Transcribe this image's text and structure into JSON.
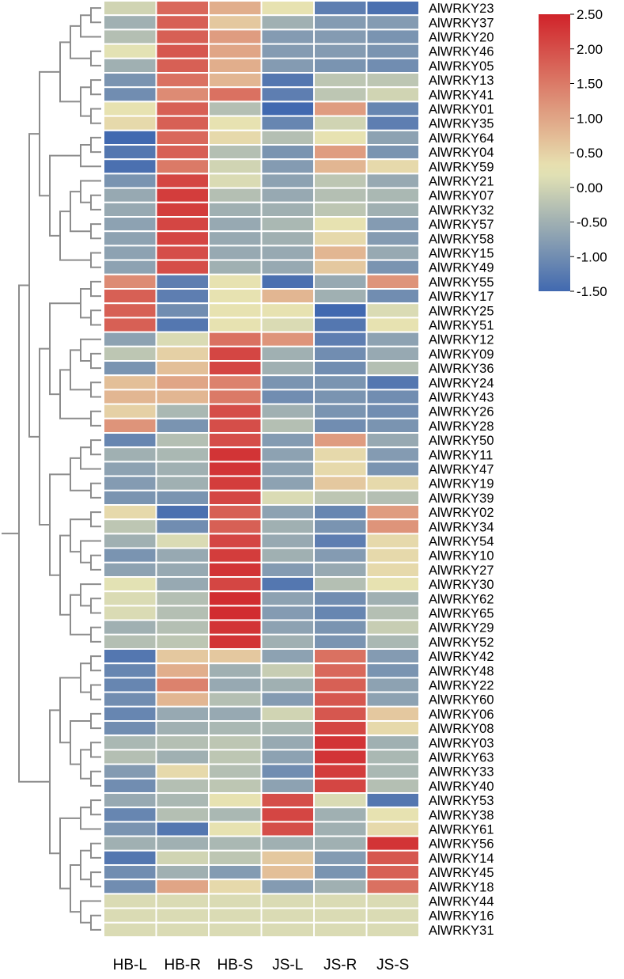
{
  "chart_data": {
    "type": "heatmap",
    "title": "",
    "columns": [
      "HB-L",
      "HB-R",
      "HB-S",
      "JS-L",
      "JS-R",
      "JS-S"
    ],
    "rows": [
      "AlWRKY23",
      "AlWRKY37",
      "AlWRKY20",
      "AlWRKY46",
      "AlWRKY05",
      "AlWRKY13",
      "AlWRKY41",
      "AlWRKY01",
      "AlWRKY35",
      "AlWRKY64",
      "AlWRKY04",
      "AlWRKY59",
      "AlWRKY21",
      "AlWRKY07",
      "AlWRKY32",
      "AlWRKY57",
      "AlWRKY58",
      "AlWRKY15",
      "AlWRKY49",
      "AlWRKY55",
      "AlWRKY17",
      "AlWRKY25",
      "AlWRKY51",
      "AlWRKY12",
      "AlWRKY09",
      "AlWRKY36",
      "AlWRKY24",
      "AlWRKY43",
      "AlWRKY26",
      "AlWRKY28",
      "AlWRKY50",
      "AlWRKY11",
      "AlWRKY47",
      "AlWRKY19",
      "AlWRKY39",
      "AlWRKY02",
      "AlWRKY34",
      "AlWRKY54",
      "AlWRKY10",
      "AlWRKY27",
      "AlWRKY30",
      "AlWRKY62",
      "AlWRKY65",
      "AlWRKY29",
      "AlWRKY52",
      "AlWRKY42",
      "AlWRKY48",
      "AlWRKY22",
      "AlWRKY60",
      "AlWRKY06",
      "AlWRKY08",
      "AlWRKY03",
      "AlWRKY63",
      "AlWRKY33",
      "AlWRKY40",
      "AlWRKY53",
      "AlWRKY38",
      "AlWRKY61",
      "AlWRKY56",
      "AlWRKY14",
      "AlWRKY45",
      "AlWRKY18",
      "AlWRKY44",
      "AlWRKY16",
      "AlWRKY31"
    ],
    "values": [
      [
        0,
        1.7,
        0.9,
        0.3,
        -1.2,
        -1.4
      ],
      [
        -0.5,
        1.8,
        0.6,
        -0.5,
        -0.8,
        -0.8
      ],
      [
        -0.3,
        1.8,
        1.1,
        -0.8,
        -0.8,
        -0.9
      ],
      [
        0.2,
        1.9,
        1.0,
        -0.8,
        -0.8,
        -0.9
      ],
      [
        -0.5,
        1.8,
        0.9,
        -0.8,
        -0.9,
        -1.0
      ],
      [
        -0.9,
        1.6,
        0.8,
        -1.3,
        -0.2,
        -0.2
      ],
      [
        -1.0,
        1.3,
        1.6,
        -1.2,
        -0.2,
        0
      ],
      [
        0.3,
        1.8,
        -0.3,
        -1.5,
        1.1,
        -1.1
      ],
      [
        0.4,
        1.8,
        0.3,
        -1.1,
        0,
        -1.2
      ],
      [
        -1.5,
        1.7,
        0.4,
        -0.3,
        0.3,
        -0.7
      ],
      [
        -1.3,
        1.8,
        -0.3,
        -0.9,
        1.1,
        -0.9
      ],
      [
        -1.4,
        1.5,
        0,
        -0.8,
        0.8,
        0.4
      ],
      [
        -0.9,
        2.1,
        0.1,
        -0.7,
        -0.2,
        -0.6
      ],
      [
        -0.6,
        2.2,
        -0.3,
        -0.6,
        -0.3,
        -0.4
      ],
      [
        -0.6,
        2.2,
        -0.5,
        -0.5,
        -0.2,
        -0.5
      ],
      [
        -0.7,
        2.1,
        -0.6,
        -0.4,
        0.3,
        -0.8
      ],
      [
        -0.7,
        2.1,
        -0.6,
        -0.5,
        0.4,
        -0.8
      ],
      [
        -0.7,
        2.0,
        -0.6,
        -0.6,
        0.8,
        -0.6
      ],
      [
        -0.7,
        2.0,
        -0.5,
        -0.6,
        0.6,
        -0.9
      ],
      [
        1.3,
        -1.2,
        0.3,
        -1.4,
        -0.6,
        1.2
      ],
      [
        1.8,
        -1.2,
        0.3,
        0.8,
        -0.5,
        -1.0
      ],
      [
        1.8,
        -1.0,
        0.3,
        0.3,
        -1.5,
        0.1
      ],
      [
        1.8,
        -1.3,
        0.3,
        0.1,
        -1.3,
        0.3
      ],
      [
        -0.7,
        0.1,
        1.6,
        1.2,
        -1.2,
        -0.7
      ],
      [
        -0.2,
        0.5,
        2.1,
        -0.5,
        -1.0,
        -0.6
      ],
      [
        -0.9,
        0.7,
        2.1,
        -0.5,
        -1.0,
        -0.3
      ],
      [
        0.7,
        1.0,
        1.4,
        -0.9,
        -0.9,
        -1.3
      ],
      [
        0.8,
        0.8,
        1.5,
        -1.0,
        -0.9,
        -1.0
      ],
      [
        0.5,
        -0.4,
        2.0,
        -0.5,
        -0.9,
        -1.0
      ],
      [
        1.2,
        -0.9,
        2.0,
        -0.3,
        -1.0,
        -0.9
      ],
      [
        -1.1,
        -0.3,
        2.0,
        -0.8,
        1.1,
        -0.6
      ],
      [
        -0.5,
        -0.4,
        2.3,
        -0.7,
        0.4,
        -0.8
      ],
      [
        -0.7,
        -0.5,
        2.3,
        -0.7,
        0.4,
        -0.9
      ],
      [
        -0.8,
        -0.5,
        2.2,
        -0.7,
        0.6,
        0.4
      ],
      [
        -0.9,
        -0.9,
        2.1,
        0.1,
        -0.2,
        -0.3
      ],
      [
        0.4,
        -1.4,
        1.8,
        -0.7,
        -1.1,
        1.1
      ],
      [
        -0.2,
        -1.0,
        1.8,
        -0.5,
        -0.9,
        1.2
      ],
      [
        -0.5,
        0.1,
        2.1,
        -0.6,
        -1.2,
        0.4
      ],
      [
        -0.9,
        -0.6,
        2.2,
        -0.5,
        -0.8,
        0.4
      ],
      [
        -0.7,
        -0.6,
        2.3,
        -0.8,
        -0.6,
        0.4
      ],
      [
        0.2,
        -0.6,
        2.1,
        -1.3,
        -0.3,
        0.3
      ],
      [
        0.1,
        -0.3,
        2.4,
        -0.7,
        -1.0,
        -0.5
      ],
      [
        0.1,
        -0.3,
        2.4,
        -0.8,
        -1.1,
        -0.3
      ],
      [
        -0.5,
        -0.3,
        2.3,
        -0.7,
        -0.9,
        -0.1
      ],
      [
        -0.3,
        -0.2,
        2.3,
        -0.5,
        -0.9,
        -0.4
      ],
      [
        -1.3,
        0.6,
        0.6,
        -0.7,
        1.6,
        -0.8
      ],
      [
        -1.1,
        0.9,
        -0.5,
        -0.1,
        1.7,
        -0.9
      ],
      [
        -1.1,
        1.4,
        -0.6,
        -0.5,
        1.8,
        -0.7
      ],
      [
        -1.0,
        0.8,
        -0.3,
        -0.8,
        1.9,
        -0.7
      ],
      [
        -1.1,
        -0.6,
        -0.6,
        0,
        1.9,
        0.6
      ],
      [
        -1.0,
        -0.5,
        -0.4,
        -0.4,
        2.1,
        0.4
      ],
      [
        -0.4,
        -0.3,
        -0.2,
        -0.6,
        2.3,
        -0.5
      ],
      [
        -0.3,
        -0.5,
        -0.2,
        -0.7,
        2.3,
        -0.4
      ],
      [
        -0.8,
        0.4,
        -0.3,
        -1.0,
        2.2,
        -0.4
      ],
      [
        -1.0,
        -0.3,
        -0.2,
        -0.7,
        2.1,
        -0.3
      ],
      [
        -0.6,
        -0.4,
        0.3,
        2.0,
        0.1,
        -1.3
      ],
      [
        -1.1,
        -0.3,
        -0.4,
        2.1,
        -0.5,
        0.3
      ],
      [
        -0.9,
        -1.3,
        0.3,
        2.0,
        -0.5,
        0.4
      ],
      [
        -0.5,
        -0.5,
        -0.4,
        -0.5,
        -0.5,
        2.3
      ],
      [
        -1.3,
        0,
        -0.2,
        0.6,
        -0.8,
        1.9
      ],
      [
        -1.0,
        -0.5,
        -0.8,
        0.7,
        -0.9,
        1.8
      ],
      [
        -1.0,
        1.0,
        0.4,
        -0.8,
        -0.5,
        1.6
      ],
      [
        0.1,
        0.1,
        0.1,
        0.1,
        0.1,
        0.1
      ],
      [
        0.1,
        0.1,
        0.1,
        0.1,
        0.1,
        0.1
      ],
      [
        0.1,
        0.1,
        0.1,
        0.1,
        0.1,
        0.1
      ]
    ],
    "colorbar": {
      "min": -1.5,
      "max": 2.5,
      "ticks": [
        "2.50",
        "2.00",
        "1.50",
        "1.00",
        "0.50",
        "0.00",
        "-0.50",
        "-1.00",
        "-1.50"
      ],
      "colors": [
        "#4169b0",
        "#e8e6b4",
        "#d0232a"
      ]
    },
    "dendrogram": "row",
    "legend_placement": "top-right"
  }
}
